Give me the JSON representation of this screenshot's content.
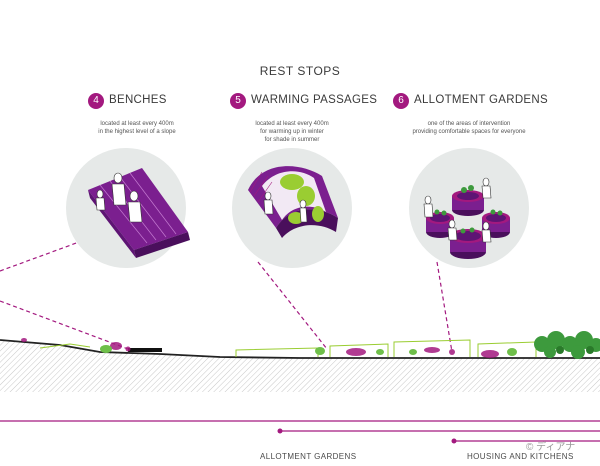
{
  "heading": "REST STOPS",
  "stops": [
    {
      "number": "4",
      "title": "BENCHES",
      "description": [
        "located at least every 400m",
        "in the highest level of a slope"
      ]
    },
    {
      "number": "5",
      "title": "WARMING PASSAGES",
      "description": [
        "located at least every 400m",
        "for warming up in winter",
        "for shade in summer"
      ]
    },
    {
      "number": "6",
      "title": "ALLOTMENT GARDENS",
      "description": [
        "one of the areas of intervention",
        "providing comfortable spaces for everyone"
      ]
    }
  ],
  "bottom_labels": {
    "left": "ALLOTMENT GARDENS",
    "right": "HOUSING AND KITCHENS"
  },
  "copyright": "© ディアナ",
  "colors": {
    "accent": "#a3197f",
    "lime": "#9acd32",
    "circle": "#e6e9e8",
    "green": "#3d9a3d"
  }
}
